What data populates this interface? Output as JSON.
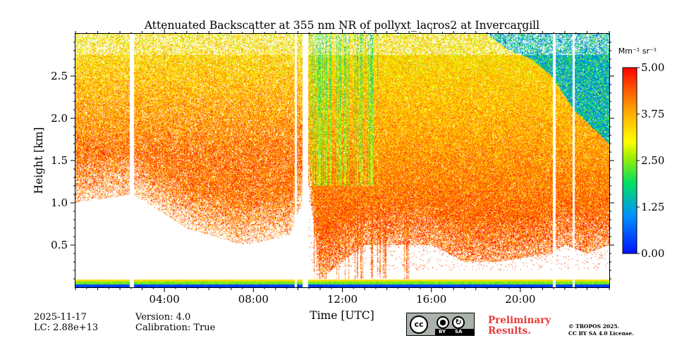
{
  "chart_data": {
    "type": "heatmap",
    "title": "Attenuated Backscatter at 355 nm NR of pollyxt_lacros2 at Invercargill",
    "xlabel": "Time [UTC]",
    "ylabel": "Height [km]",
    "xlim": [
      0,
      24
    ],
    "ylim": [
      0,
      3.0
    ],
    "x_tick_values": [
      4,
      8,
      12,
      16,
      20
    ],
    "x_tick_labels": [
      "04:00",
      "08:00",
      "12:00",
      "16:00",
      "20:00"
    ],
    "y_tick_values": [
      0.5,
      1.0,
      1.5,
      2.0,
      2.5
    ],
    "y_tick_labels": [
      "0.5",
      "1.0",
      "1.5",
      "2.0",
      "2.5"
    ],
    "colorbar": {
      "label": "Mm⁻¹ sr⁻¹",
      "min": 0.0,
      "max": 5.0,
      "tick_values": [
        0.0,
        1.25,
        2.5,
        3.75,
        5.0
      ],
      "tick_labels": [
        "0.00",
        "1.25",
        "2.50",
        "3.75",
        "5.00"
      ]
    },
    "data_gaps_hours": [
      [
        2.45,
        2.62
      ],
      [
        9.85,
        9.95
      ],
      [
        10.2,
        10.45
      ],
      [
        21.45,
        21.6
      ],
      [
        22.35,
        22.45
      ]
    ],
    "signal_bottom_km": [
      [
        0,
        1.0
      ],
      [
        2.6,
        1.1
      ],
      [
        5,
        0.7
      ],
      [
        7.5,
        0.5
      ],
      [
        9.6,
        0.6
      ],
      [
        10.5,
        1.2
      ],
      [
        11,
        0.1
      ],
      [
        13,
        0.5
      ],
      [
        16,
        0.5
      ],
      [
        17.5,
        0.3
      ],
      [
        19,
        0.3
      ],
      [
        21.4,
        0.4
      ],
      [
        22,
        0.5
      ],
      [
        23,
        0.4
      ],
      [
        24,
        0.5
      ]
    ],
    "low_cloud_top_km": [
      [
        18.5,
        3.0
      ],
      [
        19.5,
        2.8
      ],
      [
        20.5,
        2.7
      ],
      [
        21.4,
        2.5
      ],
      [
        22.4,
        2.1
      ],
      [
        24,
        1.7
      ]
    ]
  },
  "footer": {
    "date": "2025-11-17",
    "lc": "LC: 2.88e+13",
    "version": "Version: 4.0",
    "calibration": "Calibration: True",
    "preliminary_line1": "Preliminary",
    "preliminary_line2": "Results.",
    "copyright_line1": "© TROPOS 2025.",
    "copyright_line2": "CC BY SA 4.0 License."
  },
  "license_badge": {
    "cc": "cc",
    "by": "BY",
    "sa": "SA"
  }
}
